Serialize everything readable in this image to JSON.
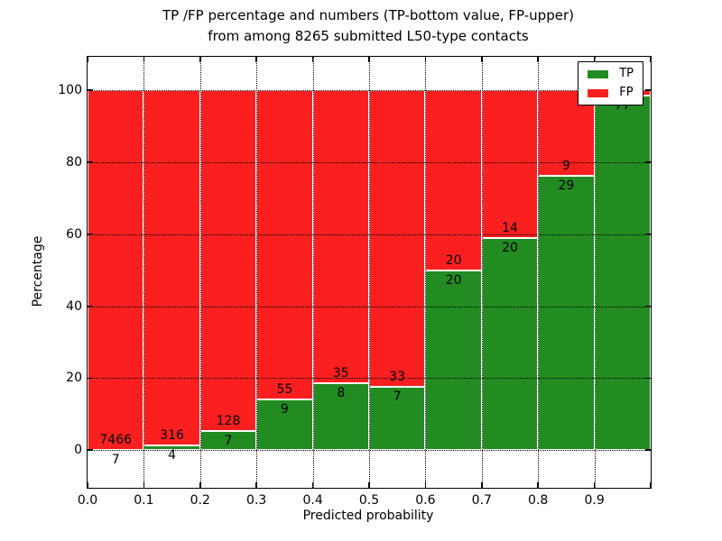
{
  "figure": {
    "title_line1": "TP /FP percentage and numbers (TP-bottom value, FP-upper)",
    "title_line2": "from among 8265 submitted L50-type contacts",
    "background": "#ffffff"
  },
  "chart_data": {
    "type": "bar",
    "stacked": true,
    "orientation": "vertical",
    "title": "TP /FP percentage and numbers (TP-bottom value, FP-upper) from among 8265 submitted L50-type contacts",
    "xlabel": "Predicted probability",
    "ylabel": "Percentage",
    "xlim": [
      0.0,
      1.0
    ],
    "ylim": [
      -10.5,
      109.3
    ],
    "grid": {
      "on": true,
      "style": "dotted",
      "color": "#000000"
    },
    "x_ticks": [
      {
        "v": 0.0,
        "label": "0.0"
      },
      {
        "v": 0.1,
        "label": "0.1"
      },
      {
        "v": 0.2,
        "label": "0.2"
      },
      {
        "v": 0.3,
        "label": "0.3"
      },
      {
        "v": 0.4,
        "label": "0.4"
      },
      {
        "v": 0.5,
        "label": "0.5"
      },
      {
        "v": 0.6,
        "label": "0.6"
      },
      {
        "v": 0.7,
        "label": "0.7"
      },
      {
        "v": 0.8,
        "label": "0.8"
      },
      {
        "v": 0.9,
        "label": "0.9"
      },
      {
        "v": 1.0,
        "label": ""
      }
    ],
    "y_ticks": [
      {
        "v": 0,
        "label": "0"
      },
      {
        "v": 20,
        "label": "20"
      },
      {
        "v": 40,
        "label": "40"
      },
      {
        "v": 60,
        "label": "60"
      },
      {
        "v": 80,
        "label": "80"
      },
      {
        "v": 100,
        "label": "100"
      }
    ],
    "grid_x_values": [
      0.1,
      0.2,
      0.3,
      0.4,
      0.5,
      0.6,
      0.7,
      0.8,
      0.9
    ],
    "grid_y_values": [
      0,
      20,
      40,
      60,
      80,
      100
    ],
    "colors": {
      "tp": "#228b22",
      "fp": "#fb1f1f",
      "bar_edge": "#ffffff",
      "text": "#000000"
    },
    "legend": {
      "position": "upper-right",
      "entries": [
        {
          "label": "TP",
          "color": "#228b22"
        },
        {
          "label": "FP",
          "color": "#fb1f1f"
        }
      ]
    },
    "bins": [
      {
        "x_range": [
          0.0,
          0.1
        ],
        "tp_pct": 0.09,
        "fp_pct": 99.91,
        "tp_label": "7",
        "fp_label": "7466"
      },
      {
        "x_range": [
          0.1,
          0.2
        ],
        "tp_pct": 1.25,
        "fp_pct": 98.75,
        "tp_label": "4",
        "fp_label": "316"
      },
      {
        "x_range": [
          0.2,
          0.3
        ],
        "tp_pct": 5.19,
        "fp_pct": 94.81,
        "tp_label": "7",
        "fp_label": "128"
      },
      {
        "x_range": [
          0.3,
          0.4
        ],
        "tp_pct": 14.06,
        "fp_pct": 85.94,
        "tp_label": "9",
        "fp_label": "55"
      },
      {
        "x_range": [
          0.4,
          0.5
        ],
        "tp_pct": 18.6,
        "fp_pct": 81.4,
        "tp_label": "8",
        "fp_label": "35"
      },
      {
        "x_range": [
          0.5,
          0.6
        ],
        "tp_pct": 17.5,
        "fp_pct": 82.5,
        "tp_label": "7",
        "fp_label": "33"
      },
      {
        "x_range": [
          0.6,
          0.7
        ],
        "tp_pct": 50.0,
        "fp_pct": 50.0,
        "tp_label": "20",
        "fp_label": "20"
      },
      {
        "x_range": [
          0.7,
          0.8
        ],
        "tp_pct": 58.82,
        "fp_pct": 41.18,
        "tp_label": "20",
        "fp_label": "14"
      },
      {
        "x_range": [
          0.8,
          0.9
        ],
        "tp_pct": 76.32,
        "fp_pct": 23.68,
        "tp_label": "29",
        "fp_label": "9"
      },
      {
        "x_range": [
          0.9,
          1.0
        ],
        "tp_pct": 98.6,
        "fp_pct": 1.4,
        "tp_label": "77",
        "fp_label": ""
      }
    ]
  }
}
